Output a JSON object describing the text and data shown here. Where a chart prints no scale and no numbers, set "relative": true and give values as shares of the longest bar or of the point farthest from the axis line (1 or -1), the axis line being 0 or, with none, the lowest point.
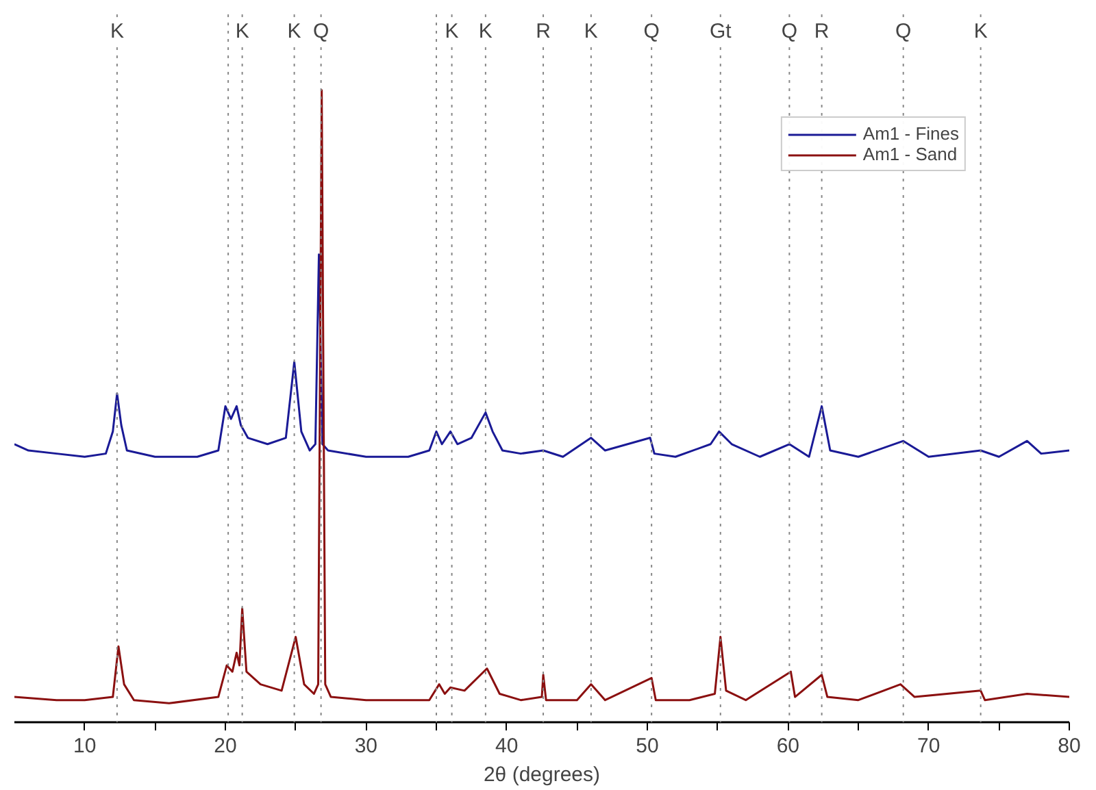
{
  "chart_data": {
    "type": "line",
    "xlabel": "2θ (degrees)",
    "relative": true,
    "tick_labels": "x",
    "grid": false,
    "legend": "top right",
    "marker": "none",
    "line_style": "solid",
    "xlim": [
      5,
      80
    ],
    "xticks": [
      10,
      20,
      30,
      40,
      50,
      60,
      70,
      80,
      {
        "value": 15,
        "label": null
      },
      {
        "value": 25,
        "label": null
      },
      {
        "value": 35,
        "label": null
      },
      {
        "value": 45,
        "label": null
      },
      {
        "value": 55,
        "label": null
      },
      {
        "value": 65,
        "label": null
      },
      {
        "value": 75,
        "label": null
      }
    ],
    "series": [
      {
        "name": "Am1 - Fines",
        "color": "#1a1a96",
        "x": [
          5,
          6,
          8,
          10,
          11.5,
          12,
          12.3,
          12.6,
          13,
          15,
          18,
          19.5,
          20,
          20.4,
          20.8,
          21.1,
          21.6,
          23,
          24.3,
          24.9,
          25.4,
          26,
          26.4,
          26.65,
          26.9,
          27.3,
          30,
          33,
          34.5,
          35,
          35.4,
          36,
          36.5,
          37.5,
          38.5,
          39,
          39.7,
          41,
          42.6,
          44,
          46,
          47,
          50.2,
          50.5,
          52,
          54.5,
          55.1,
          56,
          58,
          60.1,
          61.5,
          62.4,
          63,
          65,
          68.2,
          70,
          73.7,
          75,
          77,
          78,
          80
        ],
        "values": [
          0.44,
          0.43,
          0.425,
          0.42,
          0.425,
          0.46,
          0.52,
          0.47,
          0.43,
          0.42,
          0.42,
          0.43,
          0.5,
          0.48,
          0.5,
          0.47,
          0.45,
          0.44,
          0.45,
          0.57,
          0.46,
          0.43,
          0.44,
          0.74,
          0.44,
          0.43,
          0.42,
          0.42,
          0.43,
          0.46,
          0.44,
          0.46,
          0.44,
          0.45,
          0.49,
          0.46,
          0.43,
          0.425,
          0.43,
          0.42,
          0.45,
          0.43,
          0.45,
          0.425,
          0.42,
          0.44,
          0.46,
          0.44,
          0.42,
          0.44,
          0.42,
          0.5,
          0.43,
          0.42,
          0.445,
          0.42,
          0.43,
          0.42,
          0.445,
          0.425,
          0.43
        ]
      },
      {
        "name": "Am1 - Sand",
        "color": "#8b1010",
        "x": [
          5,
          8,
          10,
          12,
          12.4,
          12.8,
          13.5,
          16,
          19.5,
          20.1,
          20.5,
          20.8,
          21,
          21.2,
          21.5,
          22.5,
          24,
          25,
          25.6,
          26.3,
          26.6,
          26.85,
          27.1,
          27.5,
          30,
          34.5,
          35.2,
          35.6,
          36,
          37,
          38.6,
          39.5,
          41,
          42.5,
          42.6,
          42.8,
          45,
          46,
          47,
          50.3,
          50.6,
          53,
          54.8,
          55.2,
          55.6,
          57,
          60.2,
          60.5,
          62.4,
          62.8,
          65,
          68,
          69,
          73.7,
          74,
          77,
          80
        ],
        "values": [
          0.04,
          0.035,
          0.035,
          0.04,
          0.12,
          0.06,
          0.035,
          0.03,
          0.04,
          0.09,
          0.08,
          0.11,
          0.09,
          0.18,
          0.08,
          0.06,
          0.05,
          0.135,
          0.06,
          0.045,
          0.06,
          1.0,
          0.06,
          0.04,
          0.035,
          0.035,
          0.06,
          0.045,
          0.055,
          0.05,
          0.085,
          0.045,
          0.035,
          0.04,
          0.075,
          0.035,
          0.035,
          0.06,
          0.035,
          0.07,
          0.035,
          0.035,
          0.045,
          0.135,
          0.05,
          0.035,
          0.08,
          0.04,
          0.075,
          0.04,
          0.035,
          0.06,
          0.04,
          0.05,
          0.035,
          0.045,
          0.04
        ]
      }
    ],
    "ref_lines": [
      {
        "axis": "x",
        "value": 12.3,
        "label": "K",
        "color": "#888888",
        "line_style": "dotted"
      },
      {
        "axis": "x",
        "value": 20.2,
        "label": null,
        "color": "#888888",
        "line_style": "dotted"
      },
      {
        "axis": "x",
        "value": 21.2,
        "label": "K",
        "color": "#888888",
        "line_style": "dotted"
      },
      {
        "axis": "x",
        "value": 24.9,
        "label": "K",
        "color": "#888888",
        "line_style": "dotted"
      },
      {
        "axis": "x",
        "value": 26.8,
        "label": "Q",
        "color": "#888888",
        "line_style": "dotted"
      },
      {
        "axis": "x",
        "value": 35.0,
        "label": null,
        "color": "#888888",
        "line_style": "dotted"
      },
      {
        "axis": "x",
        "value": 36.1,
        "label": "K",
        "color": "#888888",
        "line_style": "dotted"
      },
      {
        "axis": "x",
        "value": 38.5,
        "label": "K",
        "color": "#888888",
        "line_style": "dotted"
      },
      {
        "axis": "x",
        "value": 42.6,
        "label": "R",
        "color": "#888888",
        "line_style": "dotted"
      },
      {
        "axis": "x",
        "value": 46.0,
        "label": "K",
        "color": "#888888",
        "line_style": "dotted"
      },
      {
        "axis": "x",
        "value": 50.3,
        "label": "Q",
        "color": "#888888",
        "line_style": "dotted"
      },
      {
        "axis": "x",
        "value": 55.2,
        "label": "Gt",
        "color": "#888888",
        "line_style": "dotted"
      },
      {
        "axis": "x",
        "value": 60.1,
        "label": "Q",
        "color": "#888888",
        "line_style": "dotted"
      },
      {
        "axis": "x",
        "value": 62.4,
        "label": "R",
        "color": "#888888",
        "line_style": "dotted"
      },
      {
        "axis": "x",
        "value": 68.2,
        "label": "Q",
        "color": "#888888",
        "line_style": "dotted"
      },
      {
        "axis": "x",
        "value": 73.7,
        "label": "K",
        "color": "#888888",
        "line_style": "dotted"
      }
    ]
  }
}
